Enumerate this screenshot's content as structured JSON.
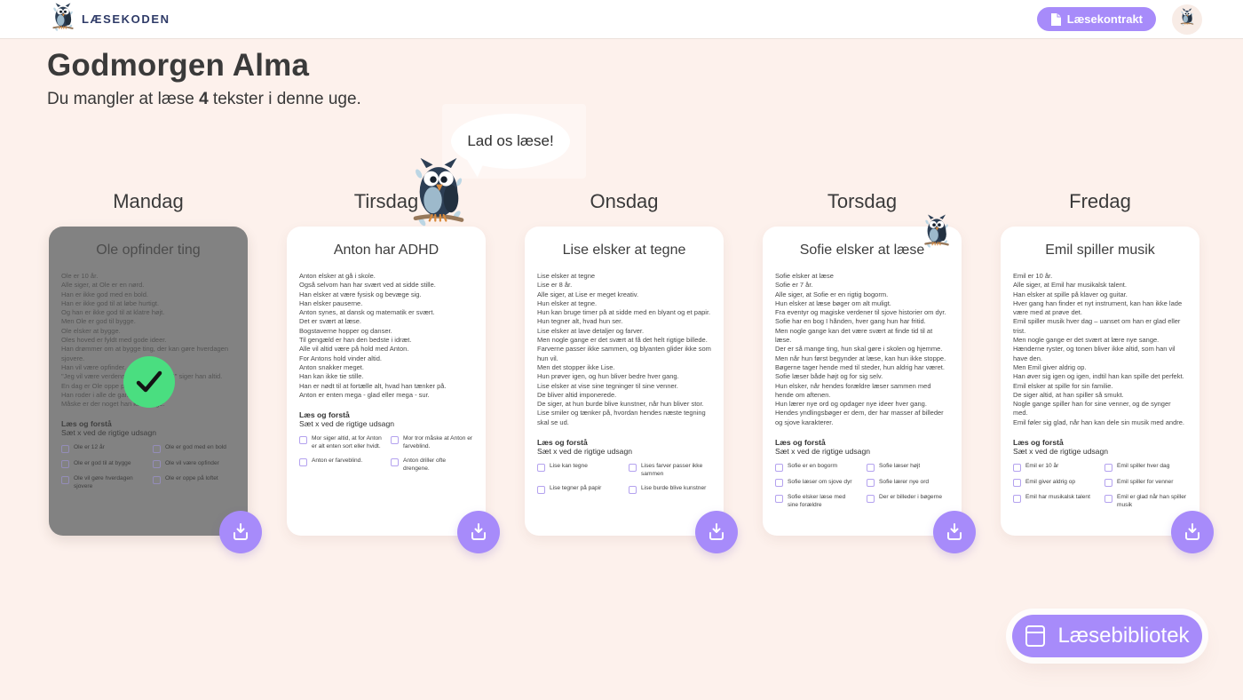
{
  "app": {
    "brand": "LÆSEKODEN"
  },
  "header": {
    "contract_button_label": "Læsekontrakt"
  },
  "greeting": {
    "title": "Godmorgen Alma",
    "subtitle_prefix": "Du mangler at læse ",
    "subtitle_count": "4",
    "subtitle_suffix": " tekster i denne uge."
  },
  "mascot": {
    "speech_bubble": "Lad os læse!"
  },
  "library_button_label": "Læsebibliotek",
  "colors": {
    "accent_purple": "#a78bfa",
    "success_green": "#4ade80",
    "page_background": "#fdf1ec",
    "brand_navy": "#2e3a67",
    "completed_card_gray": "#828282"
  },
  "icons": [
    "owl-logo-icon",
    "document-icon",
    "owl-avatar-icon",
    "owl-mascot-icon",
    "download-icon",
    "checkmark-icon",
    "book-icon"
  ],
  "week": {
    "days": [
      {
        "label": "Mandag",
        "completed": true,
        "card": {
          "title": "Ole opfinder ting",
          "lines": [
            "Ole er 10 år.",
            "Alle siger, at Ole er en nørd.",
            "Han er ikke god med en bold.",
            "Han er ikke god til at løbe hurtigt.",
            "Og han er ikke god til at klatre højt.",
            "Men Ole er god til bygge.",
            "Ole elsker at bygge.",
            "Oles hoved er fyldt med gode ideer.",
            "Han drømmer om at bygge ting, der kan gøre hverdagen sjovere.",
            "Han vil være opfinder.",
            "\"Jeg vil være verdens bedste opfinder!\" siger han altid.",
            "En dag er Ole oppe på loftet.",
            "Han roder i alle de gamle ting.",
            "Måske er der noget han kan bruge."
          ],
          "quiz_heading": "Læs og forstå",
          "quiz_instruction": "Sæt x ved de rigtige udsagn",
          "options": [
            "Ole er 12 år",
            "Ole er god med en bold",
            "Ole er god til at bygge",
            "Ole vil være opfinder",
            "Ole vil gøre hverdagen sjovere",
            "Ole er oppe på loftet"
          ]
        }
      },
      {
        "label": "Tirsdag",
        "completed": false,
        "card": {
          "title": "Anton har ADHD",
          "lines": [
            "Anton elsker at gå i skole.",
            "Også selvom han har svært ved at sidde stille.",
            "Han elsker at være fysisk og bevæge sig.",
            "Han elsker pauserne.",
            "Anton synes, at dansk og matematik er svært.",
            "Det er svært at læse.",
            "Bogstaverne hopper og danser.",
            "Til gengæld er han den bedste i idræt.",
            "Alle vil altid være på hold med Anton.",
            "For Antons hold vinder altid.",
            "Anton snakker meget.",
            "Han kan ikke tie stille.",
            "Han er nødt til at fortælle alt, hvad han tænker på.",
            "Anton er enten mega - glad eller mega - sur."
          ],
          "quiz_heading": "Læs og forstå",
          "quiz_instruction": "Sæt x ved de rigtige udsagn",
          "options": [
            "Mor siger altid, at for Anton er alt enten sort eller hvidt.",
            "Mor tror måske at Anton er farveblind.",
            "Anton er farveblind.",
            "Anton driller ofte drengene."
          ]
        }
      },
      {
        "label": "Onsdag",
        "completed": false,
        "card": {
          "title": "Lise elsker at tegne",
          "lines": [
            "Lise elsker at tegne",
            "Lise er 8 år.",
            "Alle siger, at Lise er meget kreativ.",
            "Hun elsker at tegne.",
            "Hun kan bruge timer på at sidde med en blyant og et papir.",
            "Hun tegner alt, hvad hun ser.",
            "Lise elsker at lave detaljer og farver.",
            "Men nogle gange er det svært at få det helt rigtige billede.",
            "Farverne passer ikke sammen, og blyanten glider ikke som hun vil.",
            "Men det stopper ikke Lise.",
            "Hun prøver igen, og hun bliver bedre hver gang.",
            "Lise elsker at vise sine tegninger til sine venner.",
            "De bliver altid imponerede.",
            "De siger, at hun burde blive kunstner, når hun bliver stor.",
            "Lise smiler og tænker på, hvordan hendes næste tegning skal se ud."
          ],
          "quiz_heading": "Læs og forstå",
          "quiz_instruction": "Sæt x ved de rigtige udsagn",
          "options": [
            "Lise kan tegne",
            "Lises farver passer ikke sammen",
            "Lise tegner på papir",
            "Lise burde blive kunstner"
          ]
        }
      },
      {
        "label": "Torsdag",
        "completed": false,
        "card": {
          "title": "Sofie elsker at læse",
          "lines": [
            "Sofie elsker at læse",
            "Sofie er 7 år.",
            "Alle siger, at Sofie er en rigtig bogorm.",
            "Hun elsker at læse bøger om alt muligt.",
            "Fra eventyr og magiske verdener til sjove historier om dyr.",
            "Sofie har en bog I hånden, hver gang hun har fritid.",
            "Men nogle gange kan det være svært at finde tid til at læse.",
            "Der er så mange ting, hun skal gøre i skolen og hjemme.",
            "Men når hun først begynder at læse, kan hun ikke stoppe.",
            "Bøgerne tager hende med til steder, hun aldrig har været.",
            "Sofie læser både højt og for sig selv.",
            "Hun elsker, når hendes forældre læser sammen med hende om aftenen.",
            "Hun lærer nye ord og opdager nye ideer hver gang.",
            "Hendes yndlingsbøger er dem, der har masser af billeder og sjove karakterer."
          ],
          "quiz_heading": "Læs og forstå",
          "quiz_instruction": "Sæt x ved de rigtige udsagn",
          "options": [
            "Sofie er en bogorm",
            "Sofie læser højt",
            "Sofie læser om sjove dyr",
            "Sofie lærer nye ord",
            "Sofie elsker læse med sine forældre",
            "Der er billeder i bøgerne"
          ]
        }
      },
      {
        "label": "Fredag",
        "completed": false,
        "card": {
          "title": "Emil spiller musik",
          "lines": [
            "Emil er 10 år.",
            "Alle siger, at Emil har musikalsk talent.",
            "Han elsker at spille på klaver og guitar.",
            "Hver gang han finder et nyt instrument, kan han ikke lade være med at prøve det.",
            "Emil spiller musik hver dag – uanset om han er glad eller trist.",
            "Men nogle gange er det svært at lære nye sange.",
            "Hænderne ryster, og tonen bliver ikke altid, som han vil have den.",
            "Men Emil giver aldrig op.",
            "Han øver sig igen og igen, indtil han kan spille det perfekt.",
            "Emil elsker at spille for sin familie.",
            "De siger altid, at han spiller så smukt.",
            "Nogle gange spiller han for sine venner, og de synger med.",
            "Emil føler sig glad, når han kan dele sin musik med andre."
          ],
          "quiz_heading": "Læs og forstå",
          "quiz_instruction": "Sæt x ved de rigtige udsagn",
          "options": [
            "Emil er 10 år",
            "Emil spiller hver dag",
            "Emil giver aldrig op",
            "Emil spiller for venner",
            "Emil har musikalsk talent",
            "Emil er glad når han spiller musik"
          ]
        }
      }
    ]
  }
}
